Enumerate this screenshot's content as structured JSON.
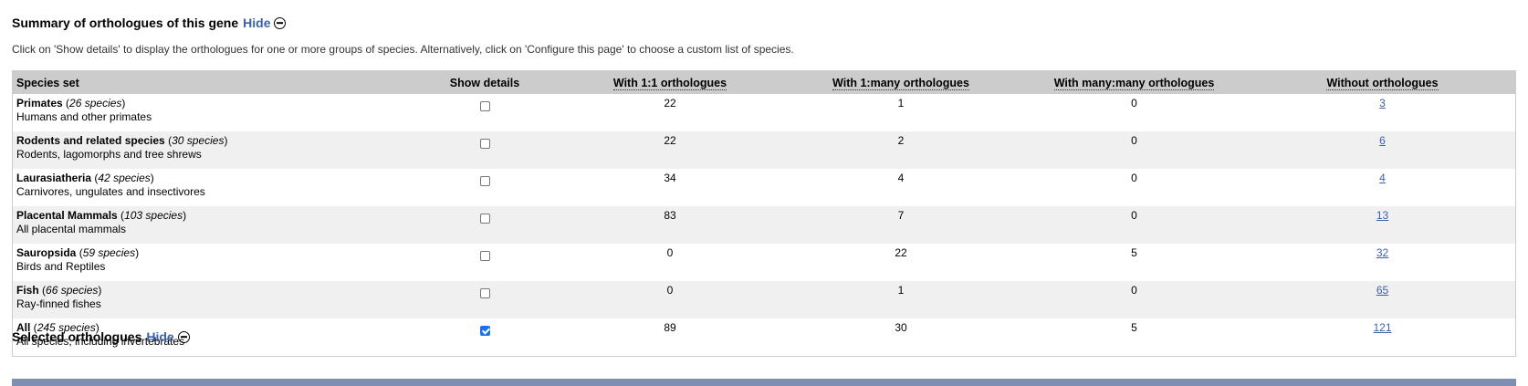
{
  "summary": {
    "title": "Summary of orthologues of this gene",
    "hide_label": "Hide",
    "intro": "Click on 'Show details' to display the orthologues for one or more groups of species. Alternatively, click on 'Configure this page' to choose a custom list of species."
  },
  "table": {
    "headers": [
      "Species set",
      "Show details",
      "With 1:1 orthologues",
      "With 1:many orthologues",
      "With many:many orthologues",
      "Without orthologues"
    ],
    "rows": [
      {
        "name": "Primates",
        "count": "26 species",
        "desc": "Humans and other primates",
        "checked": false,
        "one_one": "22",
        "one_many": "1",
        "many_many": "0",
        "without": "3"
      },
      {
        "name": "Rodents and related species",
        "count": "30 species",
        "desc": "Rodents, lagomorphs and tree shrews",
        "checked": false,
        "one_one": "22",
        "one_many": "2",
        "many_many": "0",
        "without": "6"
      },
      {
        "name": "Laurasiatheria",
        "count": "42 species",
        "desc": "Carnivores, ungulates and insectivores",
        "checked": false,
        "one_one": "34",
        "one_many": "4",
        "many_many": "0",
        "without": "4"
      },
      {
        "name": "Placental Mammals",
        "count": "103 species",
        "desc": "All placental mammals",
        "checked": false,
        "one_one": "83",
        "one_many": "7",
        "many_many": "0",
        "without": "13"
      },
      {
        "name": "Sauropsida",
        "count": "59 species",
        "desc": "Birds and Reptiles",
        "checked": false,
        "one_one": "0",
        "one_many": "22",
        "many_many": "5",
        "without": "32"
      },
      {
        "name": "Fish",
        "count": "66 species",
        "desc": "Ray-finned fishes",
        "checked": false,
        "one_one": "0",
        "one_many": "1",
        "many_many": "0",
        "without": "65"
      },
      {
        "name": "All",
        "count": "245 species",
        "desc": "All species, including invertebrates",
        "checked": true,
        "one_one": "89",
        "one_many": "30",
        "many_many": "5",
        "without": "121"
      }
    ]
  },
  "selected": {
    "title": "Selected orthologues",
    "hide_label": "Hide"
  },
  "colors": {
    "header_bg": "#cccccc",
    "row_alt_bg": "#f0f0f0",
    "link": "#3d61a8",
    "bar": "#7e8fb3",
    "checkbox_checked": "#1a73e8"
  }
}
